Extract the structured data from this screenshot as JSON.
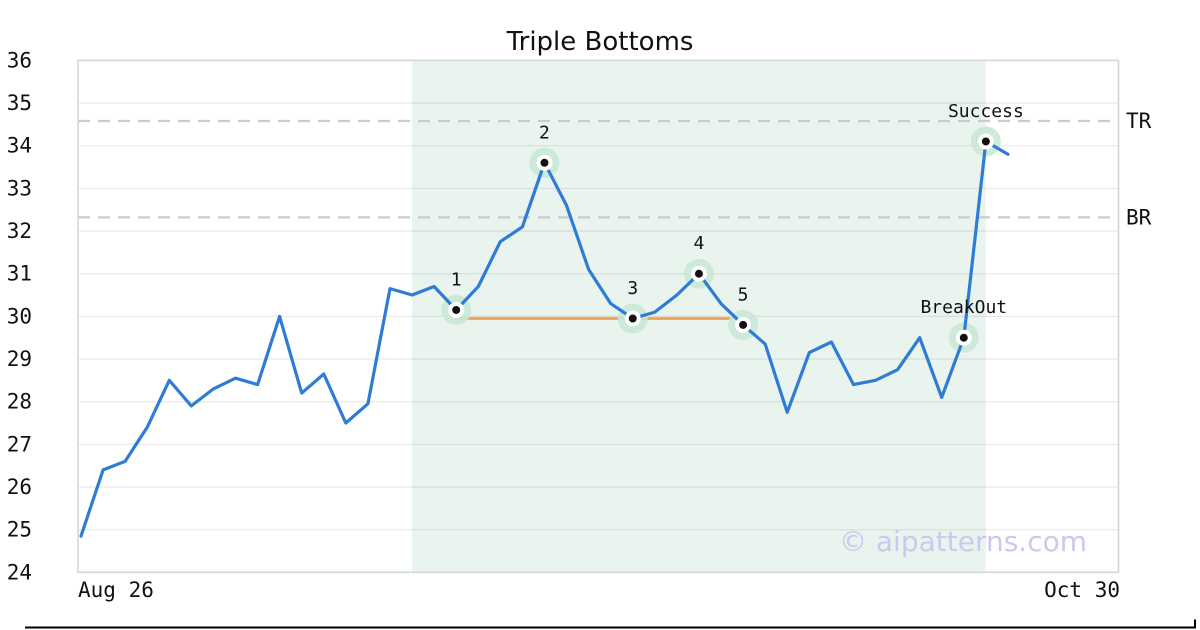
{
  "title": "Triple Bottoms",
  "watermark": "© aipatterns.com",
  "chart_data": {
    "type": "line",
    "title": "Triple Bottoms",
    "xlabel": "",
    "ylabel": "",
    "ylim": [
      24,
      36
    ],
    "y_ticks": [
      24,
      25,
      26,
      27,
      28,
      29,
      30,
      31,
      32,
      33,
      34,
      35,
      36
    ],
    "x_tick_labels": [
      "Aug 26",
      "Oct 30"
    ],
    "grid": "horizontal",
    "series": [
      {
        "name": "price",
        "values": [
          24.85,
          26.4,
          26.6,
          27.4,
          28.5,
          27.9,
          28.3,
          28.55,
          28.4,
          30.0,
          28.2,
          28.65,
          27.5,
          27.95,
          30.65,
          30.5,
          30.7,
          30.15,
          30.7,
          31.75,
          32.1,
          33.6,
          32.6,
          31.1,
          30.3,
          29.95,
          30.1,
          30.5,
          31.0,
          30.3,
          29.8,
          29.35,
          27.75,
          29.15,
          29.4,
          28.4,
          28.5,
          28.75,
          29.5,
          28.1,
          29.5,
          34.1,
          33.8
        ]
      }
    ],
    "levels": [
      {
        "label": "TR",
        "value": 34.58
      },
      {
        "label": "BR",
        "value": 32.32
      }
    ],
    "support_line": {
      "value": 29.95,
      "from_index": 17,
      "to_index": 30
    },
    "pattern_region": {
      "from_index": 15,
      "to_index": 41
    },
    "annotations": [
      {
        "label": "1",
        "index": 17
      },
      {
        "label": "2",
        "index": 21
      },
      {
        "label": "3",
        "index": 25
      },
      {
        "label": "4",
        "index": 28
      },
      {
        "label": "5",
        "index": 30
      },
      {
        "label": "BreakOut",
        "index": 40
      },
      {
        "label": "Success",
        "index": 41
      }
    ],
    "colors": {
      "line": "#2e7cd6",
      "support_line": "#f2a04e",
      "pattern_region": "#eaf4ef",
      "marker_halo": "#c9e8d6",
      "marker_core": "#ffffff",
      "marker_dot": "#111111",
      "level_dash": "#cccccc",
      "grid": "#e7eaec",
      "spine": "#d4d7d9",
      "watermark": "#c9caee",
      "bottom_rule": "#000000"
    }
  }
}
